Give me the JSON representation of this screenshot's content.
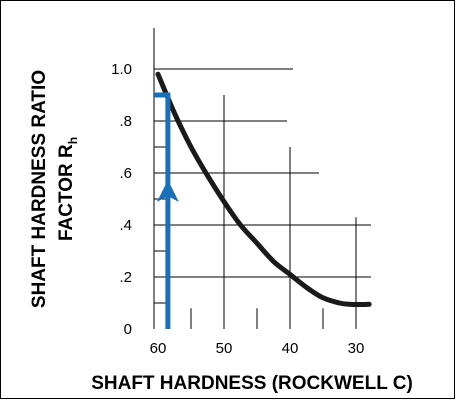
{
  "chart_data": {
    "type": "line",
    "xlabel": "SHAFT HARDNESS (ROCKWELL C)",
    "ylabel_line1": "SHAFT HARDNESS RATIO",
    "ylabel_line2": "FACTOR R",
    "ylabel_subscript": "h",
    "x_reversed": true,
    "xlim": [
      62.5,
      27
    ],
    "ylim": [
      0,
      1.1
    ],
    "x_ticks": [
      60,
      50,
      40,
      30
    ],
    "x_tick_labels": [
      "60",
      "50",
      "40",
      "30"
    ],
    "y_ticks": [
      0,
      0.2,
      0.4,
      0.6,
      0.8,
      1.0
    ],
    "y_tick_labels": [
      "0",
      ".2",
      ".4",
      ".6",
      ".8",
      "1.0"
    ],
    "curve_color": "#1a1a1a",
    "example_color": "#1b6fb5",
    "series": [
      {
        "x": [
          60,
          57.5,
          55,
          52.5,
          50,
          47.5,
          45,
          42.5,
          40,
          37.5,
          35,
          32.5,
          31,
          29.5,
          28
        ],
        "y": [
          0.98,
          0.83,
          0.7,
          0.59,
          0.49,
          0.4,
          0.33,
          0.26,
          0.21,
          0.16,
          0.12,
          0.1,
          0.095,
          0.094,
          0.095
        ]
      }
    ],
    "example_reading": {
      "x": 58.5,
      "y": 0.9
    }
  }
}
